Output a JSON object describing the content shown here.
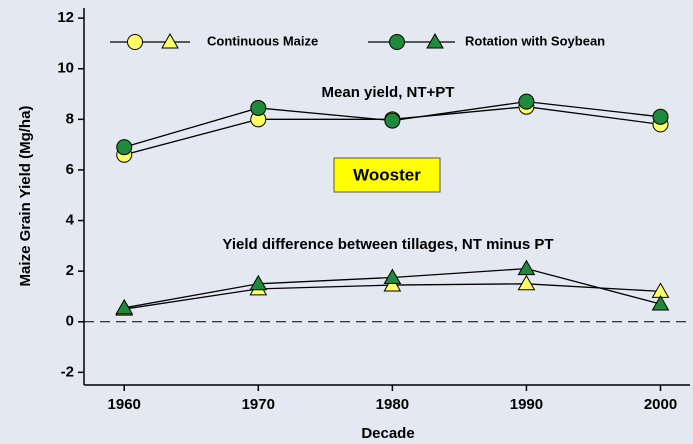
{
  "chart_data": {
    "type": "line",
    "y_label": "Maize Grain Yield (Mg/ha)",
    "x_label": "Decade",
    "annotations": [
      "Mean yield, NT+PT",
      "Yield difference between tillages, NT minus PT",
      "Wooster"
    ],
    "x": [
      1960,
      1970,
      1980,
      1990,
      2000
    ],
    "series": [
      {
        "name": "Continuous Maize",
        "color": "#ffff66",
        "mean": [
          6.6,
          8.0,
          8.0,
          8.5,
          7.8
        ],
        "difference": [
          0.5,
          1.3,
          1.45,
          1.5,
          1.2
        ]
      },
      {
        "name": "Rotation with Soybean",
        "color": "#1f8a3c",
        "mean": [
          6.9,
          8.45,
          7.95,
          8.7,
          8.1
        ],
        "difference": [
          0.55,
          1.5,
          1.75,
          2.1,
          0.7
        ]
      }
    ],
    "xlim": [
      1957,
      2002.2
    ],
    "xticks": [
      1960,
      1970,
      1980,
      1990,
      2000
    ],
    "ylim": [
      -2.5,
      12.4
    ],
    "yticks": [
      -2,
      0,
      2,
      4,
      6,
      8,
      10,
      12
    ],
    "reference_line": 0,
    "grid": false
  }
}
